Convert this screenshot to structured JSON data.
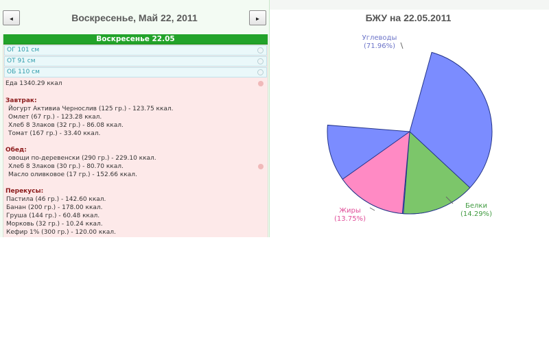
{
  "header": {
    "prev_label": "◄",
    "next_label": "►",
    "date_title": "Воскресенье, Май 22, 2011"
  },
  "day": {
    "header": "Воскресенье 22.05",
    "measurements": [
      {
        "label": "ОГ 101 см"
      },
      {
        "label": "ОТ 91 см"
      },
      {
        "label": "ОБ 110 см"
      }
    ],
    "food_total": "Еда 1340.29 ккал",
    "meals": [
      {
        "title": "Завтрак:",
        "items": [
          "Йогурт Активиа Чернослив (125 гр.) - 123.75 ккал.",
          "Омлет (67 гр.) - 123.28 ккал.",
          "Хлеб 8 Злаков (32 гр.) - 86.08 ккал.",
          "Томат (167 гр.) - 33.40 ккал."
        ]
      },
      {
        "title": "Обед:",
        "items": [
          "овощи по-деревенски (290 гр.) - 229.10 ккал.",
          "Хлеб 8 Злаков (30 гр.) - 80.70 ккал.",
          "Масло оливковое (17 гр.) - 152.66 ккал."
        ]
      },
      {
        "title": "Перекусы:",
        "items": [
          "Пастила (46 гр.) - 142.60 ккал.",
          "Банан (200 гр.) - 178.00 ккал.",
          "Груша (144 гр.) - 60.48 ккал.",
          "Морковь (32 гр.) - 10.24 ккал.",
          "Кефир 1% (300 гр.) - 120.00 ккал."
        ]
      }
    ]
  },
  "chart_data": {
    "type": "pie",
    "title": "БЖУ на 22.05.2011",
    "slices": [
      {
        "name": "Углеводы",
        "value": 71.96,
        "label": "(71.96%)",
        "color": "#7b8cff"
      },
      {
        "name": "Белки",
        "value": 14.29,
        "label": "(14.29%)",
        "color": "#7cc66a"
      },
      {
        "name": "Жиры",
        "value": 13.75,
        "label": "(13.75%)",
        "color": "#ff8ac4"
      }
    ],
    "label_colors": {
      "Углеводы": "#6b73c8",
      "Белки": "#3f9a3f",
      "Жиры": "#e04c98"
    }
  }
}
